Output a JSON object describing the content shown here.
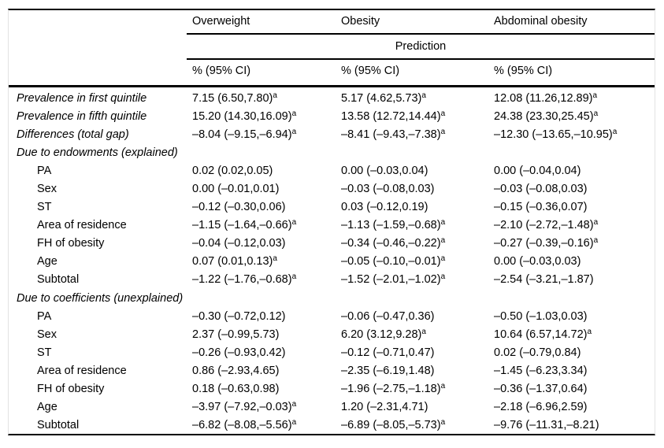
{
  "table": {
    "columns": [
      "Overweight",
      "Obesity",
      "Abdominal obesity"
    ],
    "prediction_label": "Prediction",
    "ci_label": "% (95% CI)",
    "rows": [
      {
        "label": "Prevalence in first quintile",
        "italic": true,
        "indent": false,
        "section": false,
        "cells": [
          {
            "t": "7.15 (6.50,7.80)",
            "s": "a"
          },
          {
            "t": "5.17 (4.62,5.73)",
            "s": "a"
          },
          {
            "t": "12.08 (11.26,12.89)",
            "s": "a"
          }
        ]
      },
      {
        "label": "Prevalence in fifth quintile",
        "italic": true,
        "indent": false,
        "section": false,
        "cells": [
          {
            "t": "15.20 (14.30,16.09)",
            "s": "a"
          },
          {
            "t": "13.58 (12.72,14.44)",
            "s": "a"
          },
          {
            "t": "24.38 (23.30,25.45)",
            "s": "a"
          }
        ]
      },
      {
        "label": "Differences (total gap)",
        "italic": true,
        "indent": false,
        "section": false,
        "cells": [
          {
            "t": "–8.04 (–9.15,–6.94)",
            "s": "a"
          },
          {
            "t": "–8.41 (–9.43,–7.38)",
            "s": "a"
          },
          {
            "t": "–12.30 (–13.65,–10.95)",
            "s": "a"
          }
        ]
      },
      {
        "label": "Due to endowments (explained)",
        "italic": true,
        "indent": false,
        "section": true,
        "cells": []
      },
      {
        "label": "PA",
        "italic": false,
        "indent": true,
        "section": false,
        "cells": [
          {
            "t": "0.02 (0.02,0.05)",
            "s": ""
          },
          {
            "t": "0.00 (–0.03,0.04)",
            "s": ""
          },
          {
            "t": "0.00 (–0.04,0.04)",
            "s": ""
          }
        ]
      },
      {
        "label": "Sex",
        "italic": false,
        "indent": true,
        "section": false,
        "cells": [
          {
            "t": "0.00 (–0.01,0.01)",
            "s": ""
          },
          {
            "t": "–0.03 (–0.08,0.03)",
            "s": ""
          },
          {
            "t": "–0.03 (–0.08,0.03)",
            "s": ""
          }
        ]
      },
      {
        "label": "ST",
        "italic": false,
        "indent": true,
        "section": false,
        "cells": [
          {
            "t": "–0.12 (–0.30,0.06)",
            "s": ""
          },
          {
            "t": "0.03 (–0.12,0.19)",
            "s": ""
          },
          {
            "t": "–0.15 (–0.36,0.07)",
            "s": ""
          }
        ]
      },
      {
        "label": "Area of residence",
        "italic": false,
        "indent": true,
        "section": false,
        "cells": [
          {
            "t": "–1.15 (–1.64,–0.66)",
            "s": "a"
          },
          {
            "t": "–1.13 (–1.59,–0.68)",
            "s": "a"
          },
          {
            "t": "–2.10 (–2.72,–1.48)",
            "s": "a"
          }
        ]
      },
      {
        "label": "FH of obesity",
        "italic": false,
        "indent": true,
        "section": false,
        "cells": [
          {
            "t": "–0.04 (–0.12,0.03)",
            "s": ""
          },
          {
            "t": "–0.34 (–0.46,–0.22)",
            "s": "a"
          },
          {
            "t": "–0.27 (–0.39,–0.16)",
            "s": "a"
          }
        ]
      },
      {
        "label": "Age",
        "italic": false,
        "indent": true,
        "section": false,
        "cells": [
          {
            "t": "0.07 (0.01,0.13)",
            "s": "a"
          },
          {
            "t": "–0.05 (–0.10,–0.01)",
            "s": "a"
          },
          {
            "t": "0.00 (–0.03,0.03)",
            "s": ""
          }
        ]
      },
      {
        "label": "Subtotal",
        "italic": false,
        "indent": true,
        "section": false,
        "cells": [
          {
            "t": "–1.22 (–1.76,–0.68)",
            "s": "a"
          },
          {
            "t": "–1.52 (–2.01,–1.02)",
            "s": "a"
          },
          {
            "t": "–2.54 (–3.21,–1.87)",
            "s": ""
          }
        ]
      },
      {
        "label": "Due to coefficients (unexplained)",
        "italic": true,
        "indent": false,
        "section": true,
        "cells": []
      },
      {
        "label": "PA",
        "italic": false,
        "indent": true,
        "section": false,
        "cells": [
          {
            "t": "–0.30 (–0.72,0.12)",
            "s": ""
          },
          {
            "t": "–0.06 (–0.47,0.36)",
            "s": ""
          },
          {
            "t": "–0.50 (–1.03,0.03)",
            "s": ""
          }
        ]
      },
      {
        "label": "Sex",
        "italic": false,
        "indent": true,
        "section": false,
        "cells": [
          {
            "t": "2.37 (–0.99,5.73)",
            "s": ""
          },
          {
            "t": "6.20 (3.12,9.28)",
            "s": "a"
          },
          {
            "t": "10.64 (6.57,14.72)",
            "s": "a"
          }
        ]
      },
      {
        "label": "ST",
        "italic": false,
        "indent": true,
        "section": false,
        "cells": [
          {
            "t": "–0.26 (–0.93,0.42)",
            "s": ""
          },
          {
            "t": "–0.12 (–0.71,0.47)",
            "s": ""
          },
          {
            "t": "0.02 (–0.79,0.84)",
            "s": ""
          }
        ]
      },
      {
        "label": "Area of residence",
        "italic": false,
        "indent": true,
        "section": false,
        "cells": [
          {
            "t": "0.86 (–2.93,4.65)",
            "s": ""
          },
          {
            "t": "–2.35 (–6.19,1.48)",
            "s": ""
          },
          {
            "t": "–1.45 (–6.23,3.34)",
            "s": ""
          }
        ]
      },
      {
        "label": "FH of obesity",
        "italic": false,
        "indent": true,
        "section": false,
        "cells": [
          {
            "t": "0.18 (–0.63,0.98)",
            "s": ""
          },
          {
            "t": "–1.96 (–2.75,–1.18)",
            "s": "a"
          },
          {
            "t": "–0.36 (–1.37,0.64)",
            "s": ""
          }
        ]
      },
      {
        "label": "Age",
        "italic": false,
        "indent": true,
        "section": false,
        "cells": [
          {
            "t": "–3.97 (–7.92,–0.03)",
            "s": "a"
          },
          {
            "t": "1.20 (–2.31,4.71)",
            "s": ""
          },
          {
            "t": "–2.18 (–6.96,2.59)",
            "s": ""
          }
        ]
      },
      {
        "label": "Subtotal",
        "italic": false,
        "indent": true,
        "section": false,
        "cells": [
          {
            "t": "–6.82 (–8.08,–5.56)",
            "s": "a"
          },
          {
            "t": "–6.89 (–8.05,–5.73)",
            "s": "a"
          },
          {
            "t": "–9.76 (–11.31,–8.21)",
            "s": ""
          }
        ]
      }
    ]
  }
}
